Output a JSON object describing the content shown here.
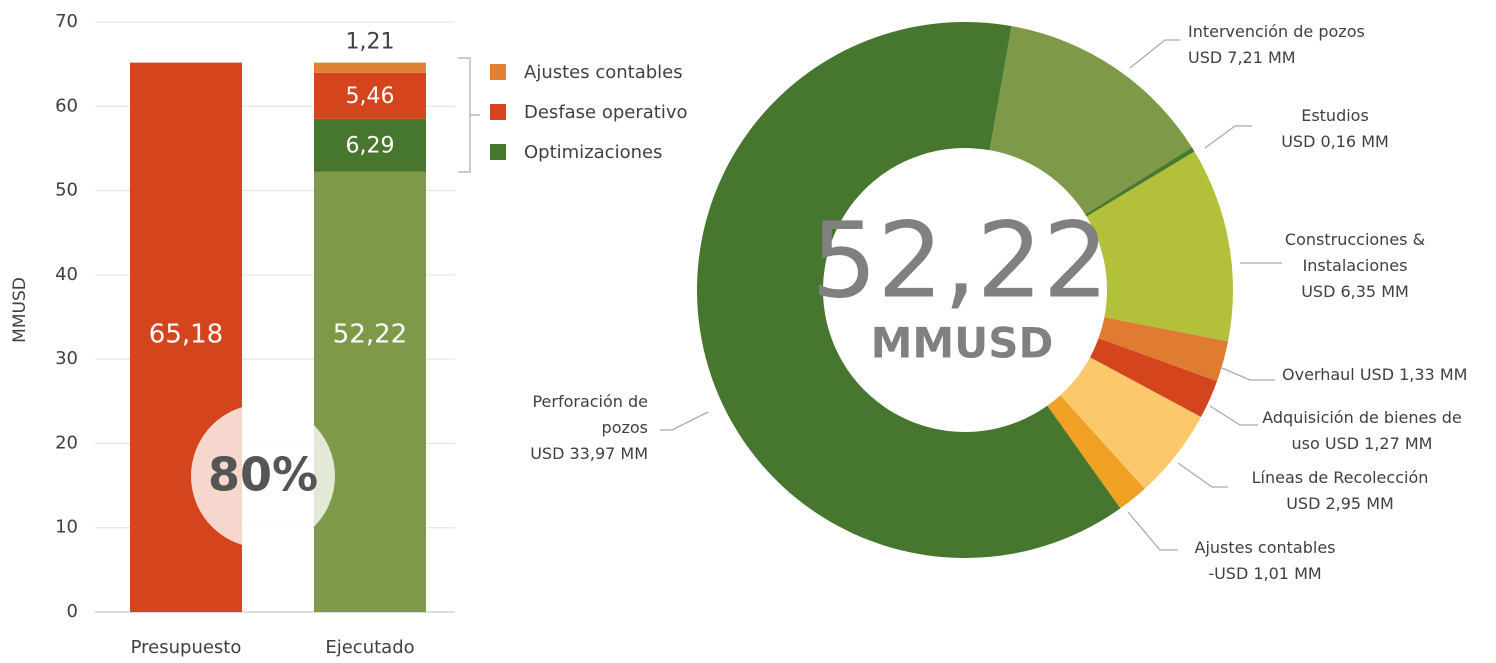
{
  "chart_data": [
    {
      "type": "bar",
      "stacked": true,
      "ylabel": "MMUSD",
      "categories": [
        "Presupuesto",
        "Ejecutado"
      ],
      "ylim": [
        0,
        70
      ],
      "yticks": [
        0,
        10,
        20,
        30,
        40,
        50,
        60,
        70
      ],
      "grid": true,
      "legend": "right",
      "series": [
        {
          "colors": [
            "#d4451e",
            "#7e9a48"
          ],
          "values": [
            65.18,
            52.22
          ],
          "value_labels": [
            "65,18",
            "52,22"
          ]
        },
        {
          "name": "Optimizaciones",
          "color": "#47762e",
          "values": [
            null,
            6.29
          ],
          "value_labels": [
            null,
            "6,29"
          ]
        },
        {
          "name": "Desfase operativo",
          "color": "#d4451e",
          "values": [
            null,
            5.46
          ],
          "value_labels": [
            null,
            "5,46"
          ]
        },
        {
          "name": "Ajustes contables",
          "color": "#e08133",
          "values": [
            null,
            1.21
          ],
          "value_labels": [
            null,
            "1,21"
          ]
        }
      ],
      "annotation": "80%"
    },
    {
      "type": "donut",
      "center_text": "52,22",
      "center_subtext": "MMUSD",
      "categories": [
        "Intervención de pozos",
        "Estudios",
        "Construcciones & Instalaciones",
        "Overhaul",
        "Adquisición de bienes de uso",
        "Líneas de Recolección",
        "Ajustes contables",
        "Perforación de pozos"
      ],
      "values": [
        7.21,
        0.16,
        6.35,
        1.33,
        1.27,
        2.95,
        -1.01,
        33.97
      ],
      "value_labels": [
        "USD 7,21 MM",
        "USD 0,16 MM",
        "USD 6,35 MM",
        "USD 1,33 MM",
        "USD 1,27 MM",
        "USD 2,95 MM",
        "-USD 1,01 MM",
        "USD 33,97 MM"
      ],
      "colors": [
        "#7e9a48",
        "#4a7a2e",
        "#b3c13a",
        "#e07c32",
        "#d4451e",
        "#fbc86b",
        "#f0a023",
        "#47762e"
      ]
    }
  ]
}
